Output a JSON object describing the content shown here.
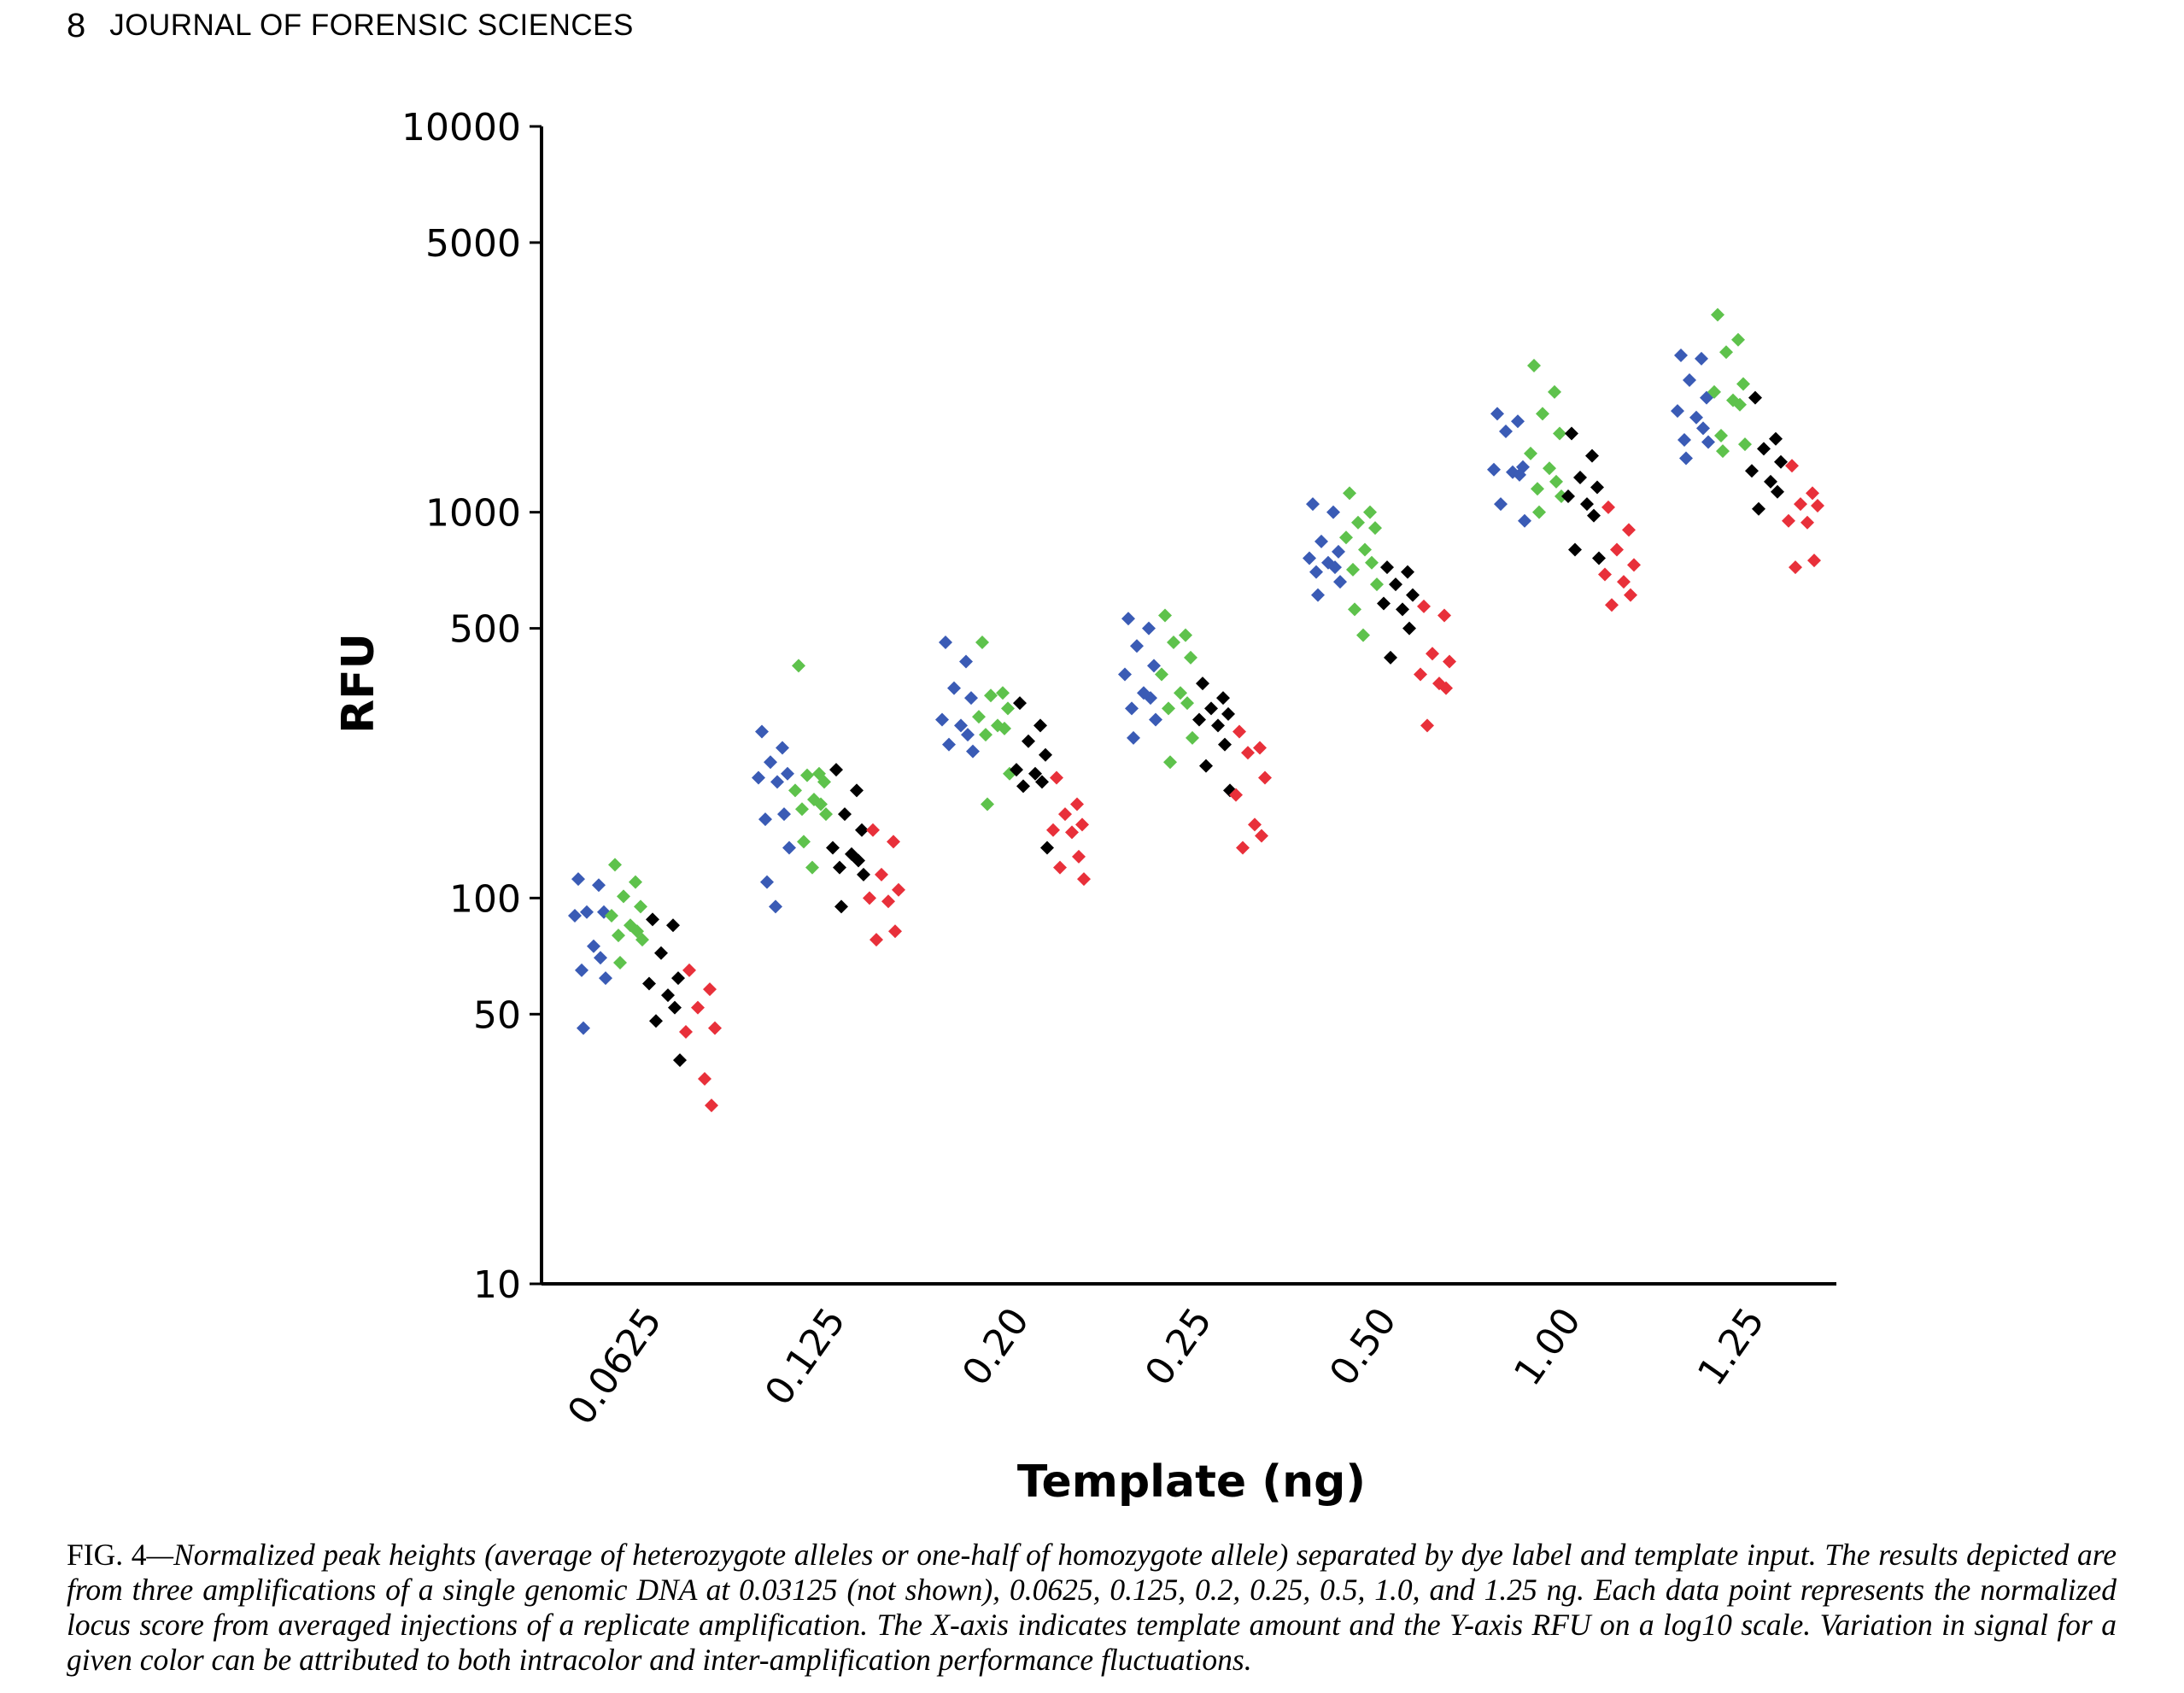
{
  "header": {
    "page_number": "8",
    "journal": "JOURNAL OF FORENSIC SCIENCES"
  },
  "caption": {
    "label": "FIG. 4",
    "text": "—Normalized peak heights (average of heterozygote alleles or one-half of homozygote allele) separated by dye label and template input. The results depicted are from three amplifications of a single genomic DNA at 0.03125 (not shown), 0.0625, 0.125, 0.2, 0.25, 0.5, 1.0, and 1.25 ng. Each data point represents the normalized locus score from averaged injections of a replicate amplification. The X-axis indicates template amount and the Y-axis RFU on a log10 scale. Variation in signal for a given color can be attributed to both intracolor and inter-amplification performance fluctuations."
  },
  "chart_data": {
    "type": "scatter",
    "title": "",
    "xlabel": "Template (ng)",
    "ylabel": "RFU",
    "yscale": "log10",
    "ylim": [
      10,
      10000
    ],
    "yticks": [
      "10",
      "50",
      "100",
      "500",
      "1000",
      "5000",
      "10000"
    ],
    "categories": [
      "0.0625",
      "0.125",
      "0.20",
      "0.25",
      "0.50",
      "1.00",
      "1.25"
    ],
    "grid": false,
    "legend": "none",
    "series": [
      {
        "color": "#3a5bb5",
        "values": [
          [
            112,
            108,
            92,
            92,
            90,
            75,
            70,
            65,
            62,
            46
          ],
          [
            270,
            245,
            225,
            210,
            205,
            200,
            165,
            160,
            135,
            110,
            95
          ],
          [
            460,
            410,
            350,
            330,
            290,
            280,
            265,
            250,
            240
          ],
          [
            530,
            500,
            450,
            400,
            380,
            340,
            330,
            310,
            290,
            260
          ],
          [
            1050,
            1000,
            840,
            790,
            760,
            740,
            720,
            700,
            660,
            610
          ],
          [
            1800,
            1720,
            1620,
            1310,
            1290,
            1270,
            1250,
            1050,
            950
          ],
          [
            2550,
            2500,
            2200,
            1980,
            1830,
            1760,
            1650,
            1540,
            1520,
            1380
          ]
        ]
      },
      {
        "color": "#5ec24c",
        "values": [
          [
            122,
            110,
            101,
            95,
            90,
            85,
            82,
            80,
            78,
            68
          ],
          [
            400,
            210,
            208,
            200,
            190,
            180,
            175,
            170,
            165,
            140,
            120
          ],
          [
            460,
            340,
            335,
            310,
            295,
            280,
            275,
            265,
            210,
            175
          ],
          [
            540,
            480,
            460,
            420,
            380,
            340,
            320,
            310,
            260,
            225
          ],
          [
            1120,
            1000,
            940,
            910,
            860,
            800,
            740,
            710,
            650,
            560,
            480
          ],
          [
            2400,
            2050,
            1800,
            1600,
            1420,
            1300,
            1200,
            1150,
            1100,
            1000
          ],
          [
            3250,
            2800,
            2600,
            2150,
            2050,
            1950,
            1900,
            1580,
            1500,
            1440
          ]
        ]
      },
      {
        "color": "#000000",
        "values": [
          [
            88,
            85,
            72,
            62,
            60,
            56,
            52,
            48,
            38
          ],
          [
            215,
            190,
            165,
            150,
            135,
            130,
            125,
            120,
            115,
            95
          ],
          [
            320,
            280,
            255,
            235,
            215,
            210,
            200,
            195,
            135
          ],
          [
            360,
            330,
            310,
            300,
            290,
            280,
            250,
            220,
            190
          ],
          [
            720,
            700,
            650,
            610,
            580,
            560,
            500,
            420
          ],
          [
            1600,
            1400,
            1230,
            1160,
            1100,
            1050,
            980,
            800,
            760
          ],
          [
            1980,
            1550,
            1460,
            1350,
            1280,
            1200,
            1130,
            1020
          ]
        ]
      },
      {
        "color": "#e8303a",
        "values": [
          [
            65,
            58,
            52,
            46,
            45,
            34,
            29
          ],
          [
            150,
            140,
            115,
            105,
            100,
            98,
            82,
            78
          ],
          [
            205,
            175,
            165,
            155,
            150,
            148,
            128,
            120,
            112
          ],
          [
            270,
            245,
            238,
            205,
            185,
            155,
            145,
            135
          ],
          [
            570,
            540,
            430,
            410,
            380,
            360,
            350,
            280
          ],
          [
            1030,
            900,
            800,
            730,
            690,
            660,
            610,
            575
          ],
          [
            1320,
            1120,
            1050,
            1040,
            950,
            940,
            750,
            720
          ]
        ]
      }
    ]
  }
}
